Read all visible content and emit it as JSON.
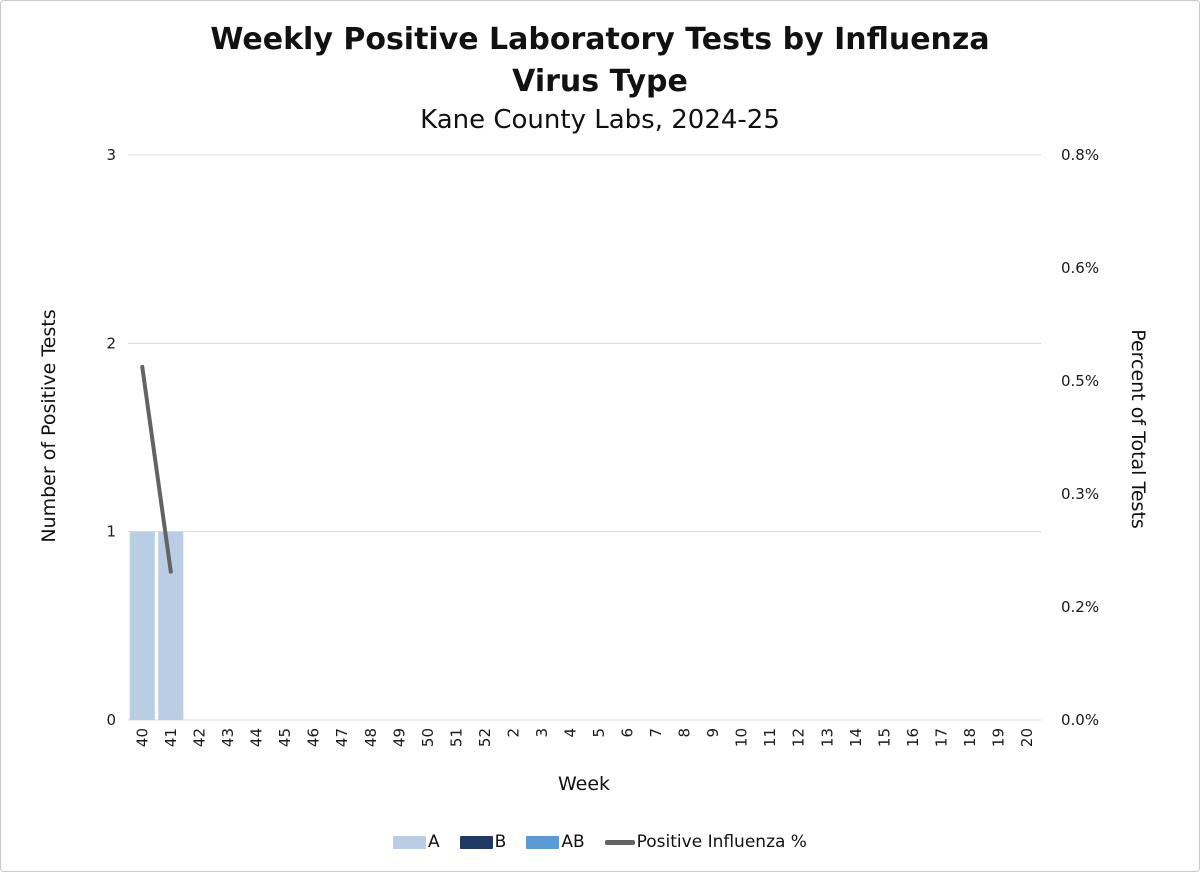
{
  "header": {
    "title_line1": "Weekly Positive Laboratory Tests by Influenza",
    "title_line2": "Virus Type",
    "subtitle": "Kane County Labs, 2024-25"
  },
  "axes": {
    "left_title": "Number of Positive Tests",
    "right_title": "Percent of Total Tests",
    "x_title": "Week"
  },
  "legend": [
    {
      "label": "A",
      "color": "#b9cde5",
      "type": "bar"
    },
    {
      "label": "B",
      "color": "#203864",
      "type": "bar"
    },
    {
      "label": "AB",
      "color": "#5b9bd5",
      "type": "bar"
    },
    {
      "label": "Positive Influenza %",
      "color": "#636363",
      "type": "line"
    }
  ],
  "chart_data": {
    "type": "bar",
    "subtype": "combo-bar-line",
    "title": "Weekly Positive Laboratory Tests by Influenza Virus Type",
    "subtitle": "Kane County Labs, 2024-25",
    "xlabel": "Week",
    "ylabel_left": "Number of Positive Tests",
    "ylabel_right": "Percent of Total Tests",
    "grid": true,
    "legend_position": "bottom",
    "categories": [
      "40",
      "41",
      "42",
      "43",
      "44",
      "45",
      "46",
      "47",
      "48",
      "49",
      "50",
      "51",
      "52",
      "2",
      "3",
      "4",
      "5",
      "6",
      "7",
      "8",
      "9",
      "10",
      "11",
      "12",
      "13",
      "14",
      "15",
      "16",
      "17",
      "18",
      "19",
      "20"
    ],
    "series": [
      {
        "name": "A",
        "type": "bar",
        "axis": "left",
        "color": "#b9cde5",
        "values": [
          1,
          1,
          0,
          0,
          0,
          0,
          0,
          0,
          0,
          0,
          0,
          0,
          0,
          0,
          0,
          0,
          0,
          0,
          0,
          0,
          0,
          0,
          0,
          0,
          0,
          0,
          0,
          0,
          0,
          0,
          0,
          0
        ]
      },
      {
        "name": "B",
        "type": "bar",
        "axis": "left",
        "color": "#203864",
        "values": [
          0,
          0,
          0,
          0,
          0,
          0,
          0,
          0,
          0,
          0,
          0,
          0,
          0,
          0,
          0,
          0,
          0,
          0,
          0,
          0,
          0,
          0,
          0,
          0,
          0,
          0,
          0,
          0,
          0,
          0,
          0,
          0
        ]
      },
      {
        "name": "AB",
        "type": "bar",
        "axis": "left",
        "color": "#5b9bd5",
        "values": [
          0,
          0,
          0,
          0,
          0,
          0,
          0,
          0,
          0,
          0,
          0,
          0,
          0,
          0,
          0,
          0,
          0,
          0,
          0,
          0,
          0,
          0,
          0,
          0,
          0,
          0,
          0,
          0,
          0,
          0,
          0,
          0
        ]
      },
      {
        "name": "Positive Influenza %",
        "type": "line",
        "axis": "right",
        "color": "#636363",
        "values": [
          0.5,
          0.21,
          null,
          null,
          null,
          null,
          null,
          null,
          null,
          null,
          null,
          null,
          null,
          null,
          null,
          null,
          null,
          null,
          null,
          null,
          null,
          null,
          null,
          null,
          null,
          null,
          null,
          null,
          null,
          null,
          null,
          null
        ]
      }
    ],
    "left_axis": {
      "ticks": [
        0,
        1,
        2,
        3
      ],
      "range": [
        0,
        3
      ]
    },
    "right_axis": {
      "tick_labels": [
        "0.0%",
        "0.2%",
        "0.3%",
        "0.5%",
        "0.6%",
        "0.8%"
      ],
      "range": [
        0,
        0.8
      ],
      "unit": "%"
    },
    "style": {
      "grid_color": "#d9d9d9",
      "tick_color": "#1a1a1a",
      "tick_font_size": 15,
      "line_width": 4
    }
  }
}
